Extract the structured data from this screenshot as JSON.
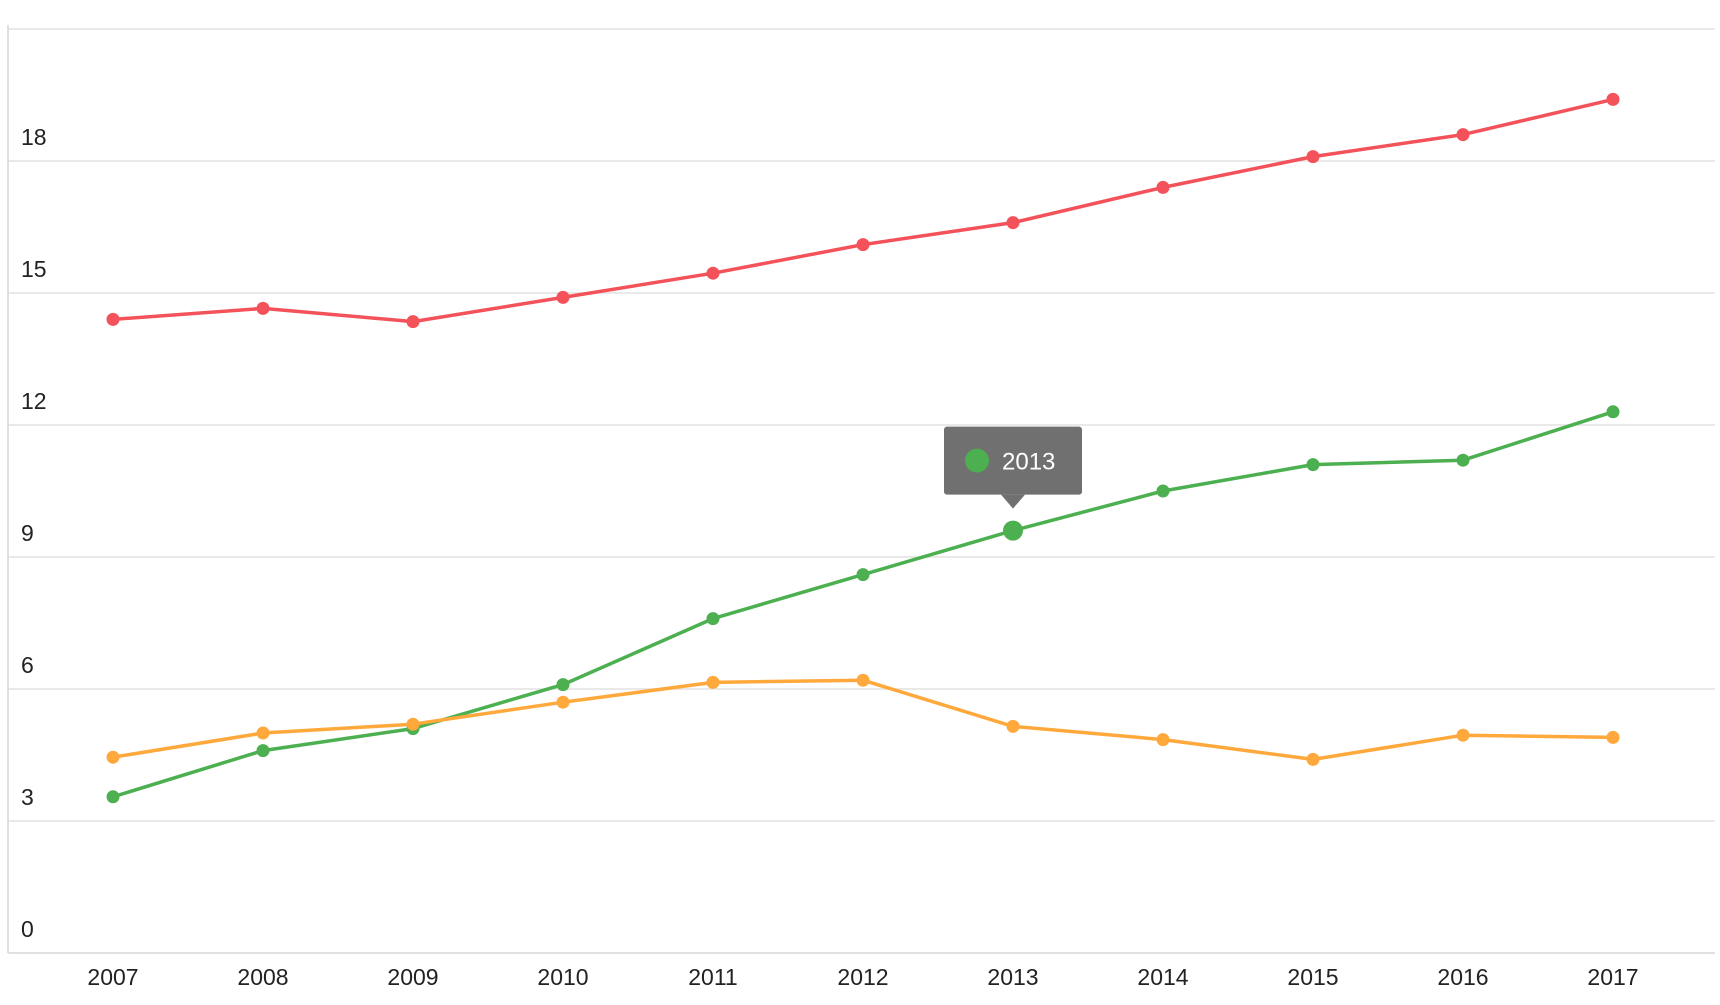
{
  "chart_data": {
    "type": "line",
    "title": "",
    "xlabel": "",
    "ylabel": "",
    "categories": [
      "2007",
      "2008",
      "2009",
      "2010",
      "2011",
      "2012",
      "2013",
      "2014",
      "2015",
      "2016",
      "2017"
    ],
    "y_ticks": [
      "0",
      "3",
      "6",
      "9",
      "12",
      "15",
      "18"
    ],
    "ylim": [
      0,
      21
    ],
    "grid": true,
    "legend": "none",
    "series": [
      {
        "color": "#f4525a",
        "values": [
          14.4,
          14.65,
          14.35,
          14.9,
          15.45,
          16.1,
          16.6,
          17.4,
          18.1,
          18.6,
          19.4
        ]
      },
      {
        "color": "#4caf50",
        "values": [
          3.55,
          4.6,
          5.1,
          6.1,
          7.6,
          8.6,
          9.6,
          10.5,
          11.1,
          11.2,
          12.3
        ]
      },
      {
        "color": "#ffa83c",
        "values": [
          4.45,
          5.0,
          5.2,
          5.7,
          6.15,
          6.2,
          5.15,
          4.85,
          4.4,
          4.95,
          4.9
        ]
      }
    ],
    "tooltip": {
      "label": "2013",
      "series_index": 1,
      "category_index": 6,
      "color": "#4caf50"
    }
  }
}
